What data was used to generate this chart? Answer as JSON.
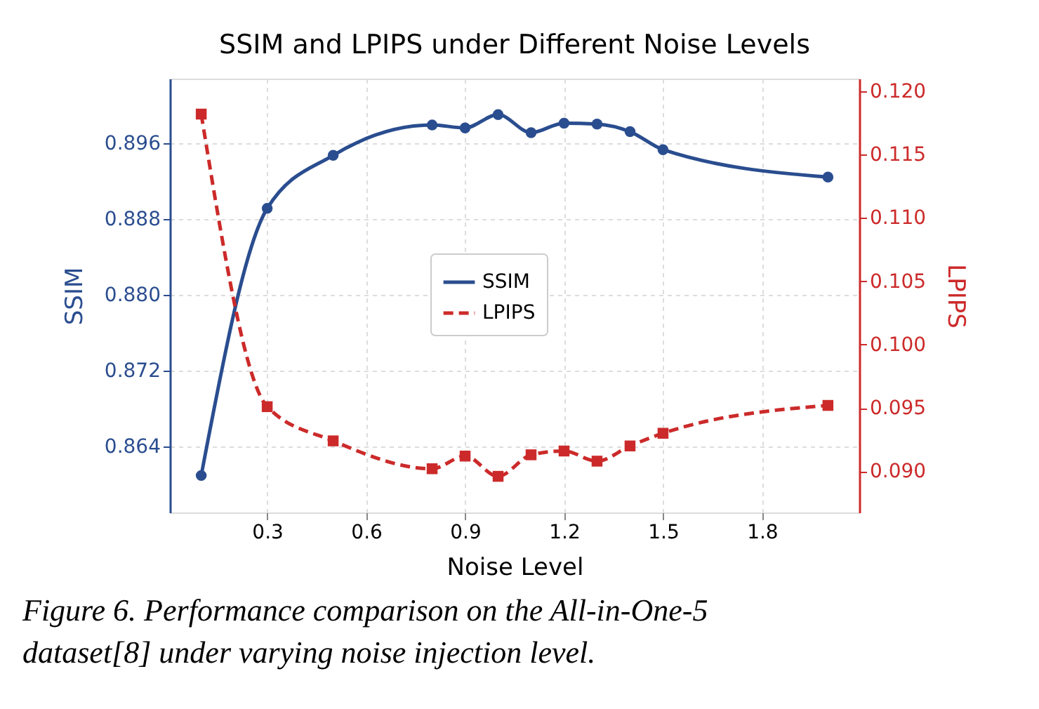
{
  "chart_data": {
    "type": "line",
    "title": "SSIM and LPIPS under Different Noise Levels",
    "xlabel": "Noise Level",
    "ylabel": "SSIM",
    "y2label": "LPIPS",
    "x": [
      0.1,
      0.3,
      0.5,
      0.8,
      0.9,
      1.0,
      1.1,
      1.2,
      1.3,
      1.4,
      1.5,
      2.0
    ],
    "series": [
      {
        "name": "SSIM",
        "color": "#2a4d8f",
        "marker": "circle",
        "line_style": "solid",
        "values": [
          0.8609,
          0.8891,
          0.8947,
          0.8979,
          0.8976,
          0.899,
          0.8971,
          0.8981,
          0.898,
          0.8972,
          0.8953,
          0.8924
        ]
      },
      {
        "name": "LPIPS",
        "color": "#cc2a2a",
        "marker": "square",
        "line_style": "dashed",
        "axis": "y2",
        "values": [
          0.1182,
          0.0951,
          0.0924,
          0.0902,
          0.0912,
          0.0896,
          0.0913,
          0.0916,
          0.0908,
          0.092,
          0.093,
          0.0952
        ]
      }
    ],
    "xlim": [
      0.005,
      2.095
    ],
    "xticks": [
      0.3,
      0.6,
      0.9,
      1.2,
      1.5,
      1.8
    ],
    "ylim": [
      0.857,
      0.9028
    ],
    "yticks": [
      0.864,
      0.872,
      {
        "value": 0.88,
        "label": "0.880"
      },
      0.888,
      0.896
    ],
    "y2lim": [
      0.08675,
      0.121
    ],
    "y2ticks": [
      {
        "value": 0.09,
        "label": "0.090"
      },
      0.095,
      {
        "value": 0.1,
        "label": "0.100"
      },
      0.105,
      {
        "value": 0.11,
        "label": "0.110"
      },
      0.115,
      {
        "value": 0.12,
        "label": "0.120"
      }
    ],
    "grid": true,
    "legend": "center",
    "annotations": [
      "Figure 6. Performance comparison on the All-in-One-5 dataset[8] under varying noise injection level."
    ]
  }
}
